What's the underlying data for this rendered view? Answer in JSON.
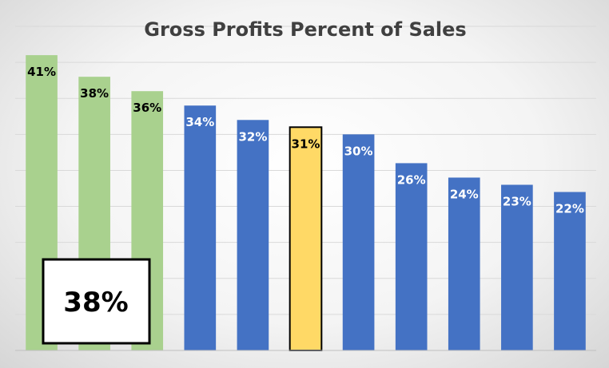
{
  "chart_data": {
    "type": "bar",
    "title": "Gross Profits Percent of Sales",
    "xlabel": "",
    "ylabel": "",
    "ylim": [
      0,
      45
    ],
    "grid": true,
    "legend": "none",
    "values": [
      41,
      38,
      36,
      34,
      32,
      31,
      30,
      26,
      24,
      23,
      22
    ],
    "labels": [
      "41%",
      "38%",
      "36%",
      "34%",
      "32%",
      "31%",
      "30%",
      "26%",
      "24%",
      "23%",
      "22%"
    ],
    "bar_colors": [
      "#a9d18e",
      "#a9d18e",
      "#a9d18e",
      "#4472c4",
      "#4472c4",
      "#ffd966",
      "#4472c4",
      "#4472c4",
      "#4472c4",
      "#4472c4",
      "#4472c4"
    ],
    "label_colors": [
      "#000000",
      "#000000",
      "#000000",
      "#ffffff",
      "#ffffff",
      "#000000",
      "#ffffff",
      "#ffffff",
      "#ffffff",
      "#ffffff",
      "#ffffff"
    ],
    "highlighted_index": 5,
    "callout": "38%"
  }
}
